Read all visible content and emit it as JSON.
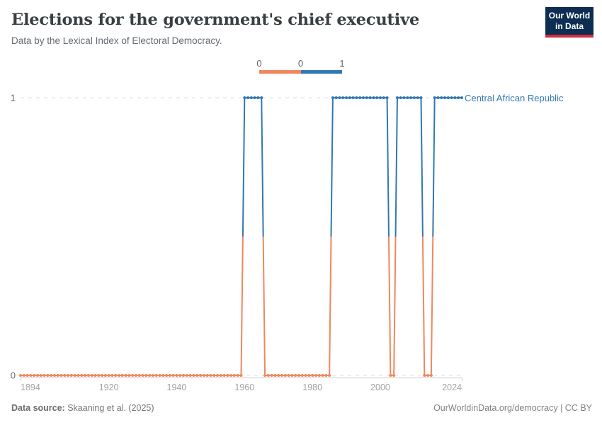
{
  "header": {
    "title": "Elections for the government's chief executive",
    "subtitle": "Data by the Lexical Index of Electoral Democracy.",
    "logo_line1": "Our World",
    "logo_line2": "in Data",
    "logo_bg": "#0d2e52",
    "logo_accent": "#cf2e41"
  },
  "legend": {
    "tick_labels": [
      "0",
      "0",
      "1"
    ],
    "segments": [
      {
        "color": "#f0875c"
      },
      {
        "color": "#3277b3"
      }
    ]
  },
  "chart_data": {
    "type": "line",
    "entity": "Central African Republic",
    "title": "Elections for the government's chief executive",
    "xlabel": "",
    "ylabel": "",
    "x_domain": [
      1894,
      2024
    ],
    "ylim": [
      0,
      1
    ],
    "x_ticks": [
      "1894",
      "1920",
      "1940",
      "1960",
      "1980",
      "2000",
      "2024"
    ],
    "x_tick_years": [
      1894,
      1920,
      1940,
      1960,
      1980,
      2000,
      2024
    ],
    "y_ticks": [
      "0",
      "1"
    ],
    "grid": "dashed-horizontal",
    "marker": "circle",
    "segments": [
      {
        "from": 1894,
        "to": 1959,
        "value": 0
      },
      {
        "from": 1960,
        "to": 1965,
        "value": 1
      },
      {
        "from": 1966,
        "to": 1985,
        "value": 0
      },
      {
        "from": 1986,
        "to": 2002,
        "value": 1
      },
      {
        "from": 2003,
        "to": 2004,
        "value": 0
      },
      {
        "from": 2005,
        "to": 2012,
        "value": 1
      },
      {
        "from": 2013,
        "to": 2015,
        "value": 0
      },
      {
        "from": 2016,
        "to": 2024,
        "value": 1
      }
    ],
    "colors": {
      "value0": "#f0875c",
      "value1": "#3277b3",
      "grid": "#dcdcdc",
      "axis": "#c9c9c9",
      "tick_text": "#a2a2a2",
      "ytick_text": "#666666"
    }
  },
  "footer": {
    "source_prefix": "Data source:",
    "source": " Skaaning et al. (2025)",
    "credit": "OurWorldinData.org/democracy | CC BY"
  }
}
